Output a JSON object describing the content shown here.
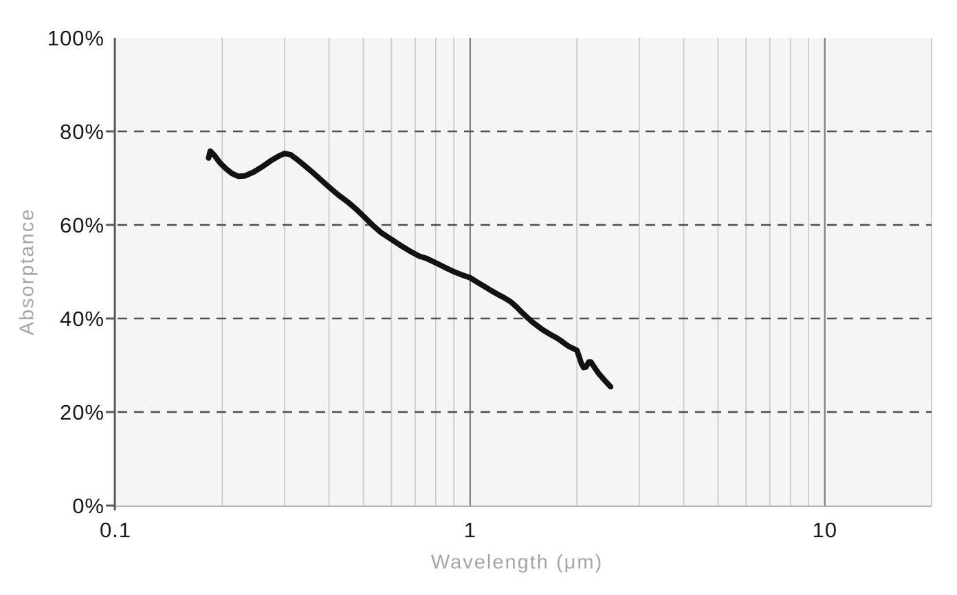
{
  "page": {
    "background": "#ffffff"
  },
  "chart_data": {
    "type": "line",
    "title": "",
    "xlabel": "Wavelength (μm)",
    "ylabel": "Absorptance",
    "x_scale": "log",
    "x_range": [
      0.1,
      20
    ],
    "y_range": [
      0,
      100
    ],
    "grid": true,
    "legend_position": "none",
    "x_ticks": [
      {
        "value": 0.1,
        "label": "0.1"
      },
      {
        "value": 1,
        "label": "1"
      },
      {
        "value": 10,
        "label": "10"
      }
    ],
    "y_ticks": [
      {
        "value": 0,
        "label": "0%"
      },
      {
        "value": 20,
        "label": "20%"
      },
      {
        "value": 40,
        "label": "40%"
      },
      {
        "value": 60,
        "label": "60%"
      },
      {
        "value": 80,
        "label": "80%"
      },
      {
        "value": 100,
        "label": "100%"
      }
    ],
    "x_minor_gridlines": [
      0.2,
      0.3,
      0.4,
      0.5,
      0.6,
      0.7,
      0.8,
      0.9,
      2,
      3,
      4,
      5,
      6,
      7,
      8,
      9,
      20
    ],
    "x_major_gridlines": [
      1,
      10
    ],
    "y_dashed_gridlines": [
      20,
      40,
      60,
      80
    ],
    "series": [
      {
        "name": "Absorptance",
        "color": "#121212",
        "points": [
          [
            0.183,
            74.3
          ],
          [
            0.185,
            75.8
          ],
          [
            0.19,
            74.9
          ],
          [
            0.197,
            73.3
          ],
          [
            0.205,
            72.0
          ],
          [
            0.213,
            71.0
          ],
          [
            0.222,
            70.4
          ],
          [
            0.232,
            70.5
          ],
          [
            0.245,
            71.3
          ],
          [
            0.26,
            72.5
          ],
          [
            0.275,
            73.8
          ],
          [
            0.29,
            74.8
          ],
          [
            0.3,
            75.3
          ],
          [
            0.312,
            75.0
          ],
          [
            0.325,
            74.0
          ],
          [
            0.34,
            72.8
          ],
          [
            0.36,
            71.2
          ],
          [
            0.38,
            69.6
          ],
          [
            0.4,
            68.1
          ],
          [
            0.425,
            66.4
          ],
          [
            0.45,
            65.0
          ],
          [
            0.475,
            63.5
          ],
          [
            0.5,
            61.9
          ],
          [
            0.53,
            60.0
          ],
          [
            0.56,
            58.4
          ],
          [
            0.6,
            56.9
          ],
          [
            0.64,
            55.5
          ],
          [
            0.68,
            54.3
          ],
          [
            0.72,
            53.3
          ],
          [
            0.75,
            52.9
          ],
          [
            0.78,
            52.3
          ],
          [
            0.82,
            51.5
          ],
          [
            0.86,
            50.7
          ],
          [
            0.9,
            50.0
          ],
          [
            0.95,
            49.3
          ],
          [
            1.0,
            48.7
          ],
          [
            1.05,
            47.7
          ],
          [
            1.1,
            46.8
          ],
          [
            1.15,
            45.9
          ],
          [
            1.2,
            45.1
          ],
          [
            1.25,
            44.4
          ],
          [
            1.3,
            43.6
          ],
          [
            1.35,
            42.5
          ],
          [
            1.4,
            41.3
          ],
          [
            1.45,
            40.2
          ],
          [
            1.5,
            39.2
          ],
          [
            1.55,
            38.4
          ],
          [
            1.6,
            37.6
          ],
          [
            1.65,
            37.0
          ],
          [
            1.7,
            36.4
          ],
          [
            1.75,
            35.9
          ],
          [
            1.8,
            35.3
          ],
          [
            1.85,
            34.6
          ],
          [
            1.9,
            34.0
          ],
          [
            1.95,
            33.6
          ],
          [
            2.0,
            33.2
          ],
          [
            2.03,
            31.8
          ],
          [
            2.06,
            30.3
          ],
          [
            2.09,
            29.5
          ],
          [
            2.12,
            29.6
          ],
          [
            2.16,
            30.7
          ],
          [
            2.19,
            30.7
          ],
          [
            2.23,
            29.8
          ],
          [
            2.3,
            28.3
          ],
          [
            2.38,
            27.0
          ],
          [
            2.44,
            26.1
          ],
          [
            2.49,
            25.4
          ]
        ]
      }
    ]
  },
  "style": {
    "plot_bg": "#f5f5f6",
    "minor_grid_color": "#cbcbcb",
    "major_grid_color": "#7d7d7d",
    "dashed_grid_color": "#4f4f4f",
    "axis_color": "#58595b",
    "tick_label_color": "#1a1a1a",
    "axis_title_color": "#a6a6a6",
    "bottom_edge_color": "#b3b3b3",
    "line_color": "#121212",
    "line_width": 8
  }
}
